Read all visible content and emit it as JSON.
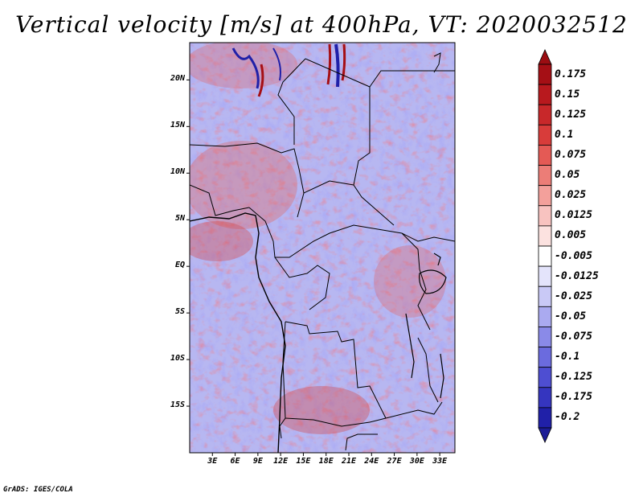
{
  "title": "Vertical velocity [m/s] at 400hPa, VT: 2020032512",
  "credit": "GrADS: IGES/COLA",
  "map": {
    "variable": "Vertical velocity",
    "units": "m/s",
    "level": "400hPa",
    "valid_time": "2020032512",
    "lon_range": [
      0,
      35
    ],
    "lat_range": [
      -20,
      24
    ],
    "lat_ticks": [
      {
        "value": 20,
        "label": "20N"
      },
      {
        "value": 15,
        "label": "15N"
      },
      {
        "value": 10,
        "label": "10N"
      },
      {
        "value": 5,
        "label": "5N"
      },
      {
        "value": 0,
        "label": "EQ"
      },
      {
        "value": -5,
        "label": "5S"
      },
      {
        "value": -10,
        "label": "10S"
      },
      {
        "value": -15,
        "label": "15S"
      }
    ],
    "lon_ticks": [
      {
        "value": 3,
        "label": "3E"
      },
      {
        "value": 6,
        "label": "6E"
      },
      {
        "value": 9,
        "label": "9E"
      },
      {
        "value": 12,
        "label": "12E"
      },
      {
        "value": 15,
        "label": "15E"
      },
      {
        "value": 18,
        "label": "18E"
      },
      {
        "value": 21,
        "label": "21E"
      },
      {
        "value": 24,
        "label": "24E"
      },
      {
        "value": 27,
        "label": "27E"
      },
      {
        "value": 30,
        "label": "30E"
      },
      {
        "value": 33,
        "label": "33E"
      }
    ]
  },
  "colorbar": {
    "bins": [
      {
        "label": "0.175",
        "color": "#a50f15"
      },
      {
        "label": "0.15",
        "color": "#b8191e"
      },
      {
        "label": "0.125",
        "color": "#c8282a"
      },
      {
        "label": "0.1",
        "color": "#d83c3a"
      },
      {
        "label": "0.075",
        "color": "#e45a55"
      },
      {
        "label": "0.05",
        "color": "#ec7d77"
      },
      {
        "label": "0.025",
        "color": "#f3a09b"
      },
      {
        "label": "0.0125",
        "color": "#f8c3c0"
      },
      {
        "label": "0.005",
        "color": "#fce2e0"
      },
      {
        "label": "-0.005",
        "color": "#ffffff"
      },
      {
        "label": "-0.0125",
        "color": "#e4e4fb"
      },
      {
        "label": "-0.025",
        "color": "#c9c9f6"
      },
      {
        "label": "-0.05",
        "color": "#aaaaf0"
      },
      {
        "label": "-0.075",
        "color": "#8a8ae8"
      },
      {
        "label": "-0.1",
        "color": "#6b6bde"
      },
      {
        "label": "-0.125",
        "color": "#4e4ed2"
      },
      {
        "label": "-0.175",
        "color": "#3535bf"
      },
      {
        "label": "-0.2",
        "color": "#2020a8"
      }
    ],
    "top_tip_color": "#9b0d12",
    "bottom_tip_color": "#1c1c96"
  }
}
